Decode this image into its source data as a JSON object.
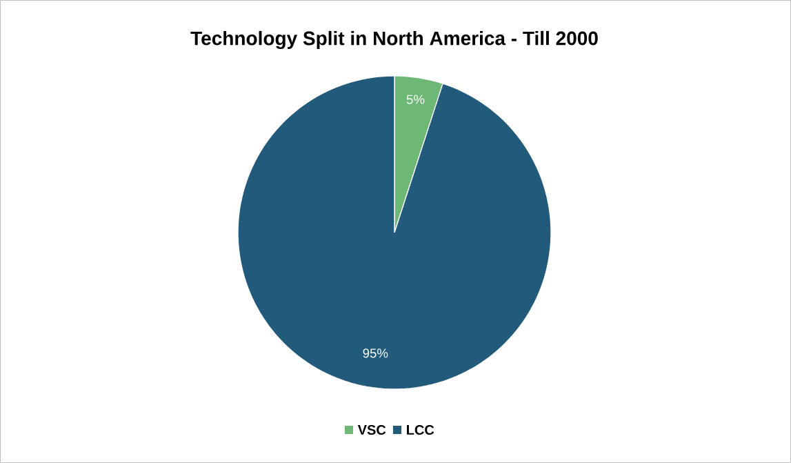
{
  "chart_data": {
    "type": "pie",
    "title": "Technology Split in North America - Till 2000",
    "categories": [
      "VSC",
      "LCC"
    ],
    "values": [
      5,
      95
    ],
    "colors": [
      "#6db874",
      "#215a7b"
    ],
    "value_labels": [
      "5%",
      "95%"
    ],
    "legend": "bottom"
  }
}
